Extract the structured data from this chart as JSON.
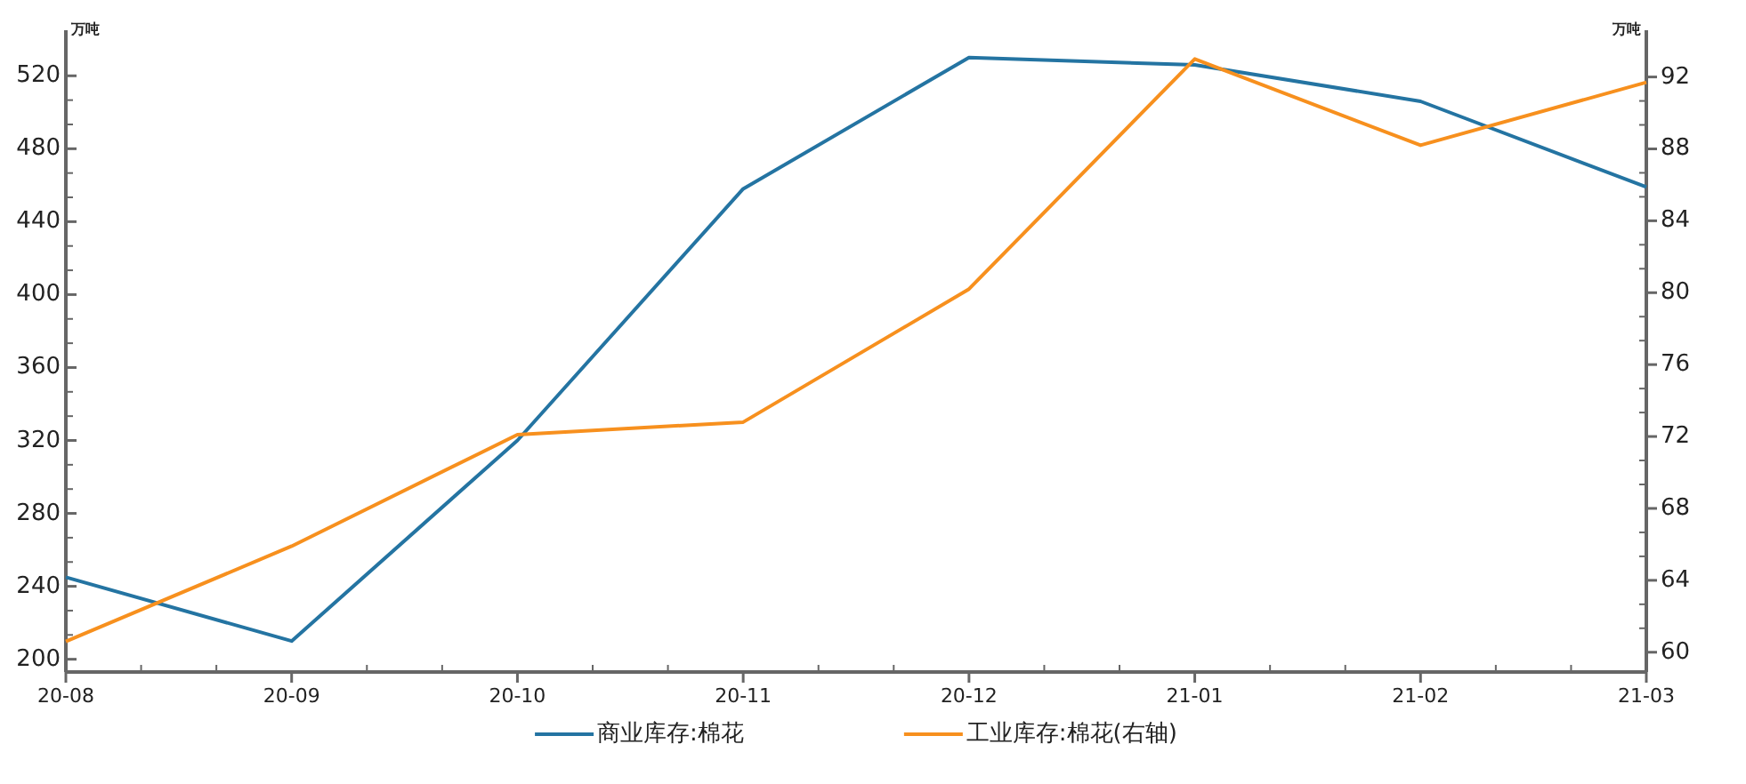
{
  "chart_data": {
    "type": "line",
    "ylabel": "万吨",
    "y2label": "万吨",
    "categories": [
      "20-08",
      "20-09",
      "20-10",
      "20-11",
      "20-12",
      "21-01",
      "21-02",
      "21-03"
    ],
    "series": [
      {
        "name": "商业库存:棉花",
        "color": "#2474a2",
        "values": [
          245,
          210,
          320,
          458,
          530,
          526,
          506,
          459
        ]
      },
      {
        "name": "工业库存:棉花(右轴)",
        "color": "#f7901e",
        "axis": "y2",
        "values": [
          60.6,
          65.9,
          72.1,
          72.8,
          80.2,
          93.0,
          88.2,
          91.7
        ]
      }
    ],
    "ylim": [
      193,
      545
    ],
    "yticks": [
      200,
      240,
      280,
      320,
      360,
      400,
      440,
      480,
      520
    ],
    "y2lim": [
      58.9,
      94.6
    ],
    "y2ticks": [
      60,
      64,
      68,
      72,
      76,
      80,
      84,
      88,
      92
    ],
    "grid": false,
    "legend": "bottom",
    "marker": "none",
    "line_style": "solid"
  }
}
